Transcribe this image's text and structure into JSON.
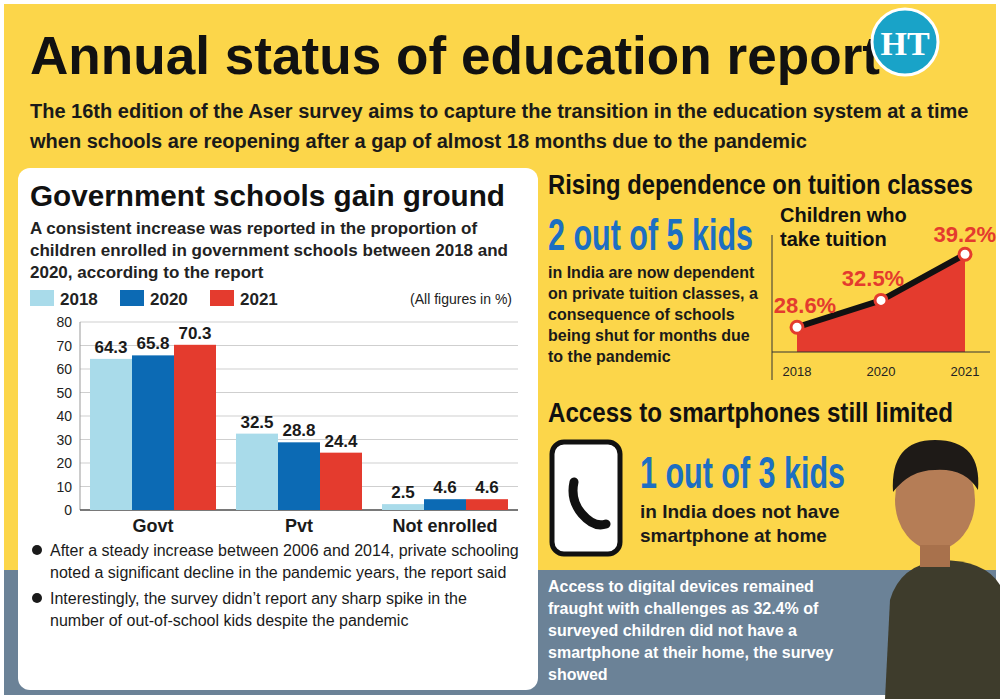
{
  "header": {
    "title": "Annual status of education report",
    "subtitle": "The 16th edition of the Aser survey aims to capture the transition in the education system at a time when schools are reopening after a gap of almost 18 months due to the pandemic",
    "logo": "HT"
  },
  "chart_data": [
    {
      "type": "bar",
      "title": "Government schools gain ground",
      "subtitle": "A consistent increase was reported in the proportion of children enrolled in government schools between 2018 and 2020, according to the report",
      "annotations": [
        "(All figures in %)",
        "After a steady increase between 2006 and 2014, private schooling noted a significant decline in the pandemic years, the report said",
        "Interestingly, the survey didn’t report any sharp spike in the number of out-of-school kids despite the pandemic"
      ],
      "categories": [
        "Govt",
        "Pvt",
        "Not enrolled"
      ],
      "series": [
        {
          "name": "2018",
          "color": "#a9dbea",
          "values": [
            64.3,
            32.5,
            2.5
          ]
        },
        {
          "name": "2020",
          "color": "#0c6ab4",
          "values": [
            65.8,
            28.8,
            4.6
          ]
        },
        {
          "name": "2021",
          "color": "#e43b2e",
          "values": [
            70.3,
            24.4,
            4.6
          ]
        }
      ],
      "ylim": [
        0,
        80
      ],
      "yticks": [
        0,
        10,
        20,
        30,
        40,
        50,
        60,
        70,
        80
      ],
      "grid": true,
      "legend": "top-left",
      "data_labels": true
    },
    {
      "type": "area",
      "title": "Children who take tuition",
      "categories": [
        "2018",
        "2020",
        "2021"
      ],
      "values": [
        28.6,
        32.5,
        39.2
      ],
      "value_labels": [
        "28.6%",
        "32.5%",
        "39.2%"
      ],
      "color": "#e43b2e",
      "marker": "circle",
      "ylim": [
        25,
        42
      ],
      "tick_labels": "x",
      "grid": false,
      "data_labels": true
    }
  ],
  "tuition": {
    "heading": "Rising dependence on tuition classes",
    "stat": "2 out of 5 kids",
    "text": "in India are now dependent on private tuition classes, a consequence of schools being shut for months due to the pandemic"
  },
  "smartphones": {
    "heading": "Access to smartphones still limited",
    "stat": "1 out of 3 kids",
    "text": "in India does not have smartphone at home",
    "caption": "Access to digital devices remained fraught with challenges as 32.4% of surveyed children did not have a smartphone at their home, the survey showed"
  }
}
